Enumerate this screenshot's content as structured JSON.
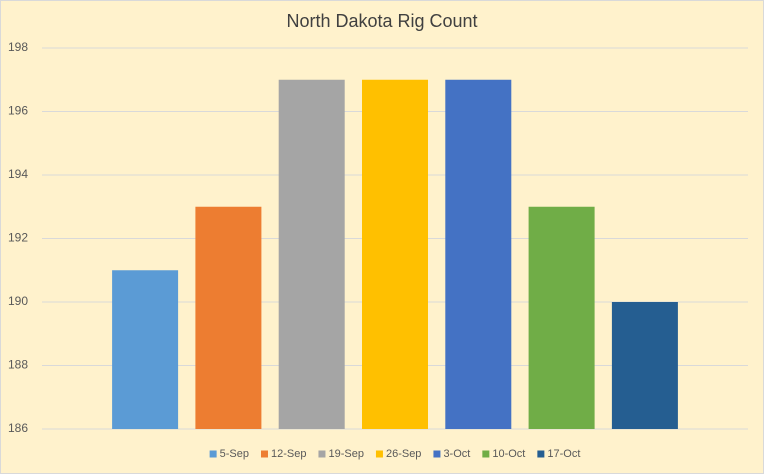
{
  "chart_data": {
    "type": "bar",
    "title": "North Dakota Rig Count",
    "series": [
      {
        "name": "5-Sep",
        "color": "#5b9bd5",
        "values": [
          191
        ]
      },
      {
        "name": "12-Sep",
        "color": "#ed7d31",
        "values": [
          193
        ]
      },
      {
        "name": "19-Sep",
        "color": "#a5a5a5",
        "values": [
          197
        ]
      },
      {
        "name": "26-Sep",
        "color": "#ffc000",
        "values": [
          197
        ]
      },
      {
        "name": "3-Oct",
        "color": "#4472c4",
        "values": [
          197
        ]
      },
      {
        "name": "10-Oct",
        "color": "#70ad47",
        "values": [
          193
        ]
      },
      {
        "name": "17-Oct",
        "color": "#255e91",
        "values": [
          190
        ]
      }
    ],
    "ylim": [
      186,
      198
    ],
    "yticks": [
      186,
      188,
      190,
      192,
      194,
      196,
      198
    ],
    "grid": true,
    "legend": "bottom"
  }
}
